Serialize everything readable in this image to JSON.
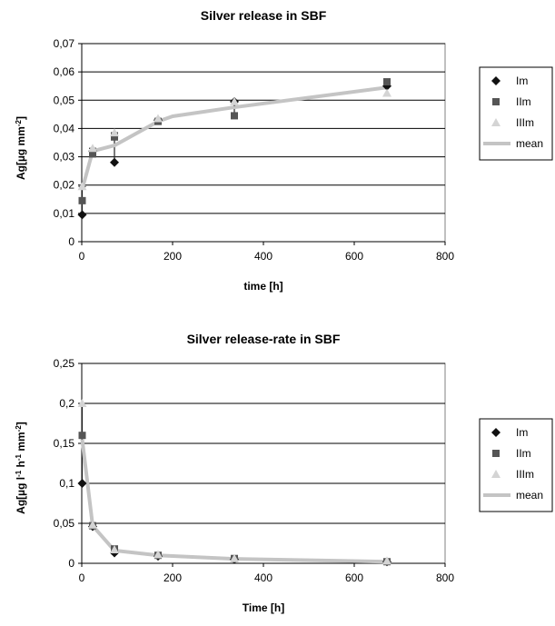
{
  "chart_data": [
    {
      "type": "scatter",
      "title": "Silver release in SBF",
      "xlabel": "time  [h]",
      "ylabel": "Ag[µg mm",
      "ylabel_sup": "-2",
      "ylabel_end": "]",
      "xlim": [
        0,
        800
      ],
      "ylim": [
        0,
        0.07
      ],
      "xticks": [
        0,
        200,
        400,
        600,
        800
      ],
      "xtick_labels": [
        "0",
        "200",
        "400",
        "600",
        "800"
      ],
      "yticks": [
        0,
        0.01,
        0.02,
        0.03,
        0.04,
        0.05,
        0.06,
        0.07
      ],
      "ytick_labels": [
        "0",
        "0,01",
        "0,02",
        "0,03",
        "0,04",
        "0,05",
        "0,06",
        "0,07"
      ],
      "grid": "horizontal",
      "legend_position": "right",
      "series": [
        {
          "name": "Im",
          "marker": "diamond",
          "color": "#111111",
          "x": [
            1,
            24,
            72,
            168,
            336,
            672
          ],
          "y": [
            0.0095,
            0.032,
            0.028,
            0.043,
            0.0495,
            0.055
          ]
        },
        {
          "name": "IIm",
          "marker": "square",
          "color": "#555555",
          "x": [
            1,
            24,
            72,
            168,
            336,
            672
          ],
          "y": [
            0.0145,
            0.031,
            0.037,
            0.0425,
            0.0445,
            0.0565
          ]
        },
        {
          "name": "IIIm",
          "marker": "triangle",
          "color": "#d4d4d4",
          "x": [
            1,
            24,
            72,
            168,
            336,
            672
          ],
          "y": [
            0.0195,
            0.033,
            0.0385,
            0.0435,
            0.0495,
            0.0525
          ]
        },
        {
          "name": "mean",
          "marker": "line",
          "color": "#c4c4c4",
          "x": [
            1,
            24,
            72,
            168,
            200,
            336,
            672
          ],
          "y": [
            0.0185,
            0.032,
            0.034,
            0.0425,
            0.0443,
            0.0475,
            0.0545
          ]
        }
      ],
      "error_bars": {
        "x": [
          1,
          24,
          72,
          168,
          336,
          672
        ],
        "low": [
          0.0095,
          0.031,
          0.028,
          0.0425,
          0.0445,
          0.0515
        ],
        "high": [
          0.0195,
          0.033,
          0.0385,
          0.0435,
          0.0498,
          0.0565
        ]
      }
    },
    {
      "type": "scatter",
      "title": "Silver release-rate in SBF",
      "xlabel": "Time [h]",
      "ylabel": "Ag[µg l",
      "ylabel_sup": "-1",
      "ylabel_mid": " h",
      "ylabel_sup2": "-1",
      "ylabel_mid2": " mm",
      "ylabel_sup3": "-2",
      "ylabel_end": "]",
      "xlim": [
        0,
        800
      ],
      "ylim": [
        0,
        0.25
      ],
      "xticks": [
        0,
        200,
        400,
        600,
        800
      ],
      "xtick_labels": [
        "0",
        "200",
        "400",
        "600",
        "800"
      ],
      "yticks": [
        0,
        0.05,
        0.1,
        0.15,
        0.2,
        0.25
      ],
      "ytick_labels": [
        "0",
        "0,05",
        "0,1",
        "0,15",
        "0,2",
        "0,25"
      ],
      "grid": "horizontal",
      "legend_position": "right",
      "series": [
        {
          "name": "Im",
          "marker": "diamond",
          "color": "#111111",
          "x": [
            1,
            24,
            72,
            168,
            336,
            672
          ],
          "y": [
            0.1,
            0.046,
            0.013,
            0.009,
            0.005,
            0.002
          ]
        },
        {
          "name": "IIm",
          "marker": "square",
          "color": "#555555",
          "x": [
            1,
            24,
            72,
            168,
            336,
            672
          ],
          "y": [
            0.16,
            0.047,
            0.018,
            0.01,
            0.006,
            0.002
          ]
        },
        {
          "name": "IIIm",
          "marker": "triangle",
          "color": "#d4d4d4",
          "x": [
            1,
            24,
            72,
            168,
            336,
            672
          ],
          "y": [
            0.2,
            0.048,
            0.017,
            0.011,
            0.006,
            0.003
          ]
        },
        {
          "name": "mean",
          "marker": "line",
          "color": "#c4c4c4",
          "x": [
            1,
            24,
            72,
            168,
            336,
            672
          ],
          "y": [
            0.155,
            0.047,
            0.016,
            0.01,
            0.0055,
            0.002
          ]
        }
      ],
      "error_bars": {
        "x": [
          1,
          24,
          72,
          168,
          336,
          672
        ],
        "low": [
          0.1,
          0.046,
          0.012,
          0.009,
          0.005,
          0.001
        ],
        "high": [
          0.2,
          0.048,
          0.019,
          0.011,
          0.006,
          0.003
        ]
      }
    }
  ]
}
